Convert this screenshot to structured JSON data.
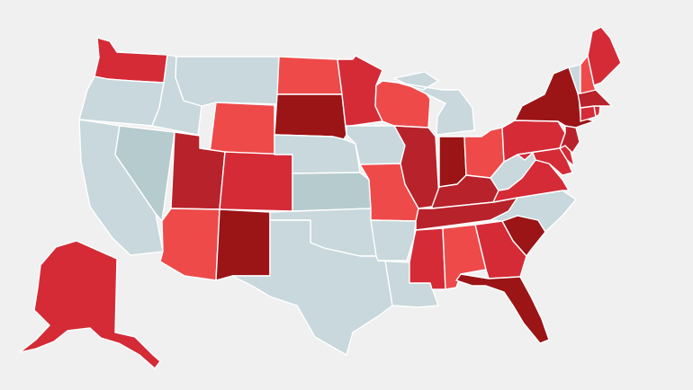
{
  "palette": {
    "background": "#f0f0f0",
    "none": "#c8d8dc",
    "none_alt": "#b6cbcd",
    "light": "#ee4a4a",
    "medium": "#d42b37",
    "strong": "#b8222a",
    "dark": "#9b1416"
  },
  "states": [
    {
      "id": "AK",
      "shade": "medium"
    },
    {
      "id": "WA",
      "shade": "medium"
    },
    {
      "id": "OR",
      "shade": "none"
    },
    {
      "id": "CA",
      "shade": "none"
    },
    {
      "id": "ID",
      "shade": "none"
    },
    {
      "id": "NV",
      "shade": "none_alt"
    },
    {
      "id": "MT",
      "shade": "none"
    },
    {
      "id": "WY",
      "shade": "light"
    },
    {
      "id": "UT",
      "shade": "strong"
    },
    {
      "id": "CO",
      "shade": "medium"
    },
    {
      "id": "AZ",
      "shade": "light"
    },
    {
      "id": "NM",
      "shade": "dark"
    },
    {
      "id": "ND",
      "shade": "light"
    },
    {
      "id": "SD",
      "shade": "dark"
    },
    {
      "id": "NE",
      "shade": "none"
    },
    {
      "id": "KS",
      "shade": "none_alt"
    },
    {
      "id": "OK",
      "shade": "none"
    },
    {
      "id": "TX",
      "shade": "none"
    },
    {
      "id": "MN",
      "shade": "medium"
    },
    {
      "id": "IA",
      "shade": "none"
    },
    {
      "id": "MO",
      "shade": "light"
    },
    {
      "id": "AR",
      "shade": "none"
    },
    {
      "id": "LA",
      "shade": "none"
    },
    {
      "id": "WI",
      "shade": "light"
    },
    {
      "id": "IL",
      "shade": "strong"
    },
    {
      "id": "MI",
      "shade": "none"
    },
    {
      "id": "IN",
      "shade": "dark"
    },
    {
      "id": "OH",
      "shade": "light"
    },
    {
      "id": "KY",
      "shade": "strong"
    },
    {
      "id": "TN",
      "shade": "strong"
    },
    {
      "id": "MS",
      "shade": "medium"
    },
    {
      "id": "AL",
      "shade": "light"
    },
    {
      "id": "GA",
      "shade": "medium"
    },
    {
      "id": "FL",
      "shade": "dark"
    },
    {
      "id": "SC",
      "shade": "dark"
    },
    {
      "id": "NC",
      "shade": "none"
    },
    {
      "id": "VA",
      "shade": "medium"
    },
    {
      "id": "WV",
      "shade": "none"
    },
    {
      "id": "PA",
      "shade": "medium"
    },
    {
      "id": "MD",
      "shade": "medium"
    },
    {
      "id": "DE",
      "shade": "medium"
    },
    {
      "id": "NJ",
      "shade": "strong"
    },
    {
      "id": "NY",
      "shade": "dark"
    },
    {
      "id": "CT",
      "shade": "medium"
    },
    {
      "id": "RI",
      "shade": "medium"
    },
    {
      "id": "MA",
      "shade": "strong"
    },
    {
      "id": "VT",
      "shade": "none"
    },
    {
      "id": "NH",
      "shade": "light"
    },
    {
      "id": "ME",
      "shade": "medium"
    }
  ]
}
